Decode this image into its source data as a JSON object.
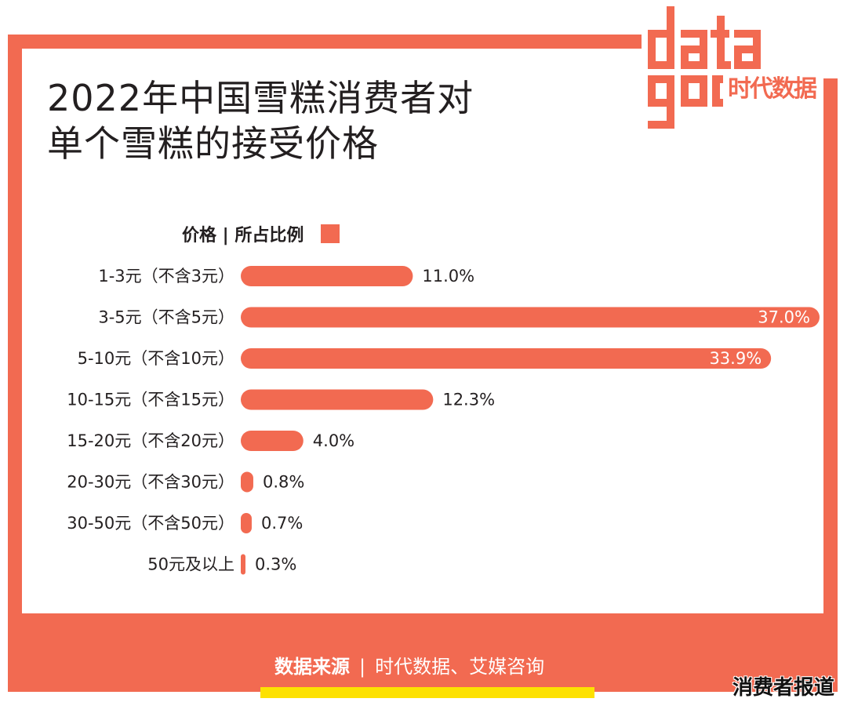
{
  "title_line1": "2022年中国雪糕消费者对",
  "title_line2": "单个雪糕的接受价格",
  "logo": {
    "word": "data",
    "brand": "时代数据"
  },
  "legend": {
    "label": "价格 | 所占比例"
  },
  "colors": {
    "accent": "#f26a51",
    "footer_yellow": "#fde100",
    "text": "#231f20"
  },
  "source": {
    "prefix": "数据来源",
    "separator": "|",
    "value": "时代数据、艾媒咨询"
  },
  "watermark": "消费者报道",
  "chart_data": {
    "type": "bar",
    "orientation": "horizontal",
    "title": "2022年中国雪糕消费者对单个雪糕的接受价格",
    "categories": [
      "1-3元（不含3元）",
      "3-5元（不含5元）",
      "5-10元（不含10元）",
      "10-15元（不含15元）",
      "15-20元（不含20元）",
      "20-30元（不含30元）",
      "30-50元（不含50元）",
      "50元及以上"
    ],
    "values": [
      11.0,
      37.0,
      33.9,
      12.3,
      4.0,
      0.8,
      0.7,
      0.3
    ],
    "value_labels": [
      "11.0%",
      "37.0%",
      "33.9%",
      "12.3%",
      "4.0%",
      "0.8%",
      "0.7%",
      "0.3%"
    ],
    "unit": "%",
    "xlim": [
      0,
      37.0
    ],
    "grid": false,
    "legend_position": "top-left"
  }
}
